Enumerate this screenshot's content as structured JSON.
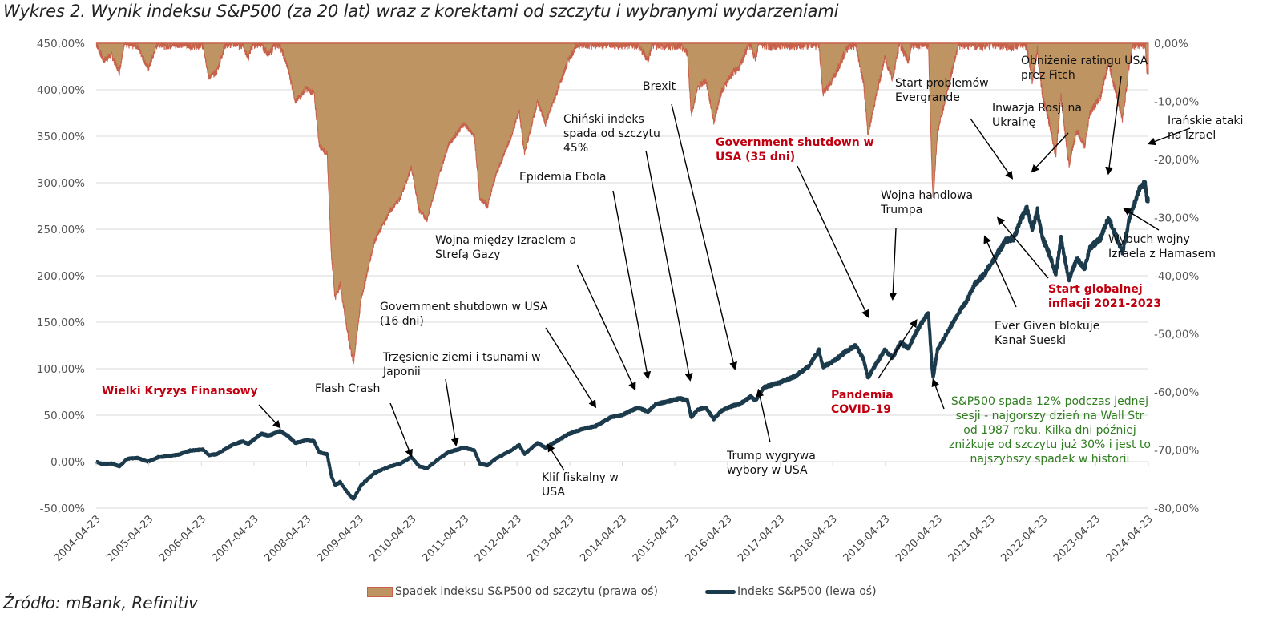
{
  "chart_data": {
    "type": "area+line",
    "title": "Wykres 2. Wynik indeksu S&P500 (za 20 lat) wraz z korektami od szczytu i wybranymi wydarzeniami",
    "source": "Źródło: mBank, Refinitiv",
    "x_ticks": [
      "2004-04-23",
      "2005-04-23",
      "2006-04-23",
      "2007-04-23",
      "2008-04-23",
      "2009-04-23",
      "2010-04-23",
      "2011-04-23",
      "2012-04-23",
      "2013-04-23",
      "2014-04-23",
      "2015-04-23",
      "2016-04-23",
      "2017-04-23",
      "2018-04-23",
      "2019-04-23",
      "2020-04-23",
      "2021-04-23",
      "2022-04-23",
      "2023-04-23",
      "2024-04-23"
    ],
    "x_range": [
      2004.31,
      2024.31
    ],
    "left_axis": {
      "label": "Indeks S&P500 (lewa oś)",
      "ylim": [
        -0.5,
        4.5
      ],
      "ticks": [
        "-50,00%",
        "0,00%",
        "50,00%",
        "100,00%",
        "150,00%",
        "200,00%",
        "250,00%",
        "300,00%",
        "350,00%",
        "400,00%",
        "450,00%"
      ]
    },
    "right_axis": {
      "label": "Spadek indeksu S&P500 od szczytu (prawa oś)",
      "ylim": [
        -0.8,
        0.0
      ],
      "ticks": [
        "0,00%",
        "-10,00%",
        "-20,00%",
        "-30,00%",
        "-40,00%",
        "-50,00%",
        "-60,00%",
        "-70,00%",
        "-80,00%"
      ]
    },
    "grid": true,
    "legend_position": "bottom",
    "series": [
      {
        "name": "Spadek indeksu S&P500 od szczytu (prawa oś)",
        "type": "area",
        "axis": "right",
        "color": "#bd9462",
        "edge_color": "#c8604a",
        "derived_from": "Indeks S&P500 (lewa oś)"
      },
      {
        "name": "Indeks S&P500 (lewa oś)",
        "type": "line",
        "axis": "left",
        "color": "#1b3a4b",
        "points": [
          [
            2004.31,
            0.0
          ],
          [
            2004.45,
            -0.03
          ],
          [
            2004.6,
            -0.02
          ],
          [
            2004.75,
            -0.05
          ],
          [
            2004.9,
            0.03
          ],
          [
            2005.1,
            0.04
          ],
          [
            2005.3,
            0.0
          ],
          [
            2005.5,
            0.05
          ],
          [
            2005.7,
            0.06
          ],
          [
            2005.9,
            0.08
          ],
          [
            2006.1,
            0.12
          ],
          [
            2006.35,
            0.13
          ],
          [
            2006.45,
            0.07
          ],
          [
            2006.6,
            0.08
          ],
          [
            2006.9,
            0.18
          ],
          [
            2007.1,
            0.22
          ],
          [
            2007.2,
            0.19
          ],
          [
            2007.45,
            0.3
          ],
          [
            2007.6,
            0.28
          ],
          [
            2007.8,
            0.33
          ],
          [
            2007.95,
            0.28
          ],
          [
            2008.1,
            0.2
          ],
          [
            2008.3,
            0.23
          ],
          [
            2008.45,
            0.22
          ],
          [
            2008.55,
            0.1
          ],
          [
            2008.7,
            0.08
          ],
          [
            2008.78,
            -0.15
          ],
          [
            2008.85,
            -0.25
          ],
          [
            2008.95,
            -0.22
          ],
          [
            2009.1,
            -0.34
          ],
          [
            2009.2,
            -0.4
          ],
          [
            2009.35,
            -0.25
          ],
          [
            2009.6,
            -0.12
          ],
          [
            2009.9,
            -0.05
          ],
          [
            2010.1,
            -0.02
          ],
          [
            2010.3,
            0.05
          ],
          [
            2010.45,
            -0.05
          ],
          [
            2010.6,
            -0.07
          ],
          [
            2010.8,
            0.02
          ],
          [
            2011.0,
            0.1
          ],
          [
            2011.3,
            0.15
          ],
          [
            2011.5,
            0.12
          ],
          [
            2011.6,
            -0.02
          ],
          [
            2011.75,
            -0.04
          ],
          [
            2011.9,
            0.03
          ],
          [
            2012.2,
            0.12
          ],
          [
            2012.35,
            0.18
          ],
          [
            2012.45,
            0.08
          ],
          [
            2012.7,
            0.2
          ],
          [
            2012.85,
            0.15
          ],
          [
            2013.0,
            0.2
          ],
          [
            2013.3,
            0.3
          ],
          [
            2013.6,
            0.36
          ],
          [
            2013.8,
            0.38
          ],
          [
            2014.1,
            0.48
          ],
          [
            2014.3,
            0.5
          ],
          [
            2014.6,
            0.58
          ],
          [
            2014.8,
            0.54
          ],
          [
            2014.95,
            0.62
          ],
          [
            2015.2,
            0.65
          ],
          [
            2015.4,
            0.68
          ],
          [
            2015.55,
            0.66
          ],
          [
            2015.62,
            0.48
          ],
          [
            2015.75,
            0.56
          ],
          [
            2015.9,
            0.58
          ],
          [
            2016.05,
            0.46
          ],
          [
            2016.2,
            0.55
          ],
          [
            2016.4,
            0.6
          ],
          [
            2016.55,
            0.62
          ],
          [
            2016.75,
            0.7
          ],
          [
            2016.85,
            0.66
          ],
          [
            2017.0,
            0.8
          ],
          [
            2017.3,
            0.85
          ],
          [
            2017.6,
            0.92
          ],
          [
            2017.85,
            1.02
          ],
          [
            2018.05,
            1.2
          ],
          [
            2018.12,
            1.02
          ],
          [
            2018.3,
            1.07
          ],
          [
            2018.55,
            1.18
          ],
          [
            2018.75,
            1.25
          ],
          [
            2018.9,
            1.1
          ],
          [
            2018.98,
            0.9
          ],
          [
            2019.1,
            1.02
          ],
          [
            2019.3,
            1.2
          ],
          [
            2019.45,
            1.12
          ],
          [
            2019.6,
            1.28
          ],
          [
            2019.75,
            1.22
          ],
          [
            2019.9,
            1.4
          ],
          [
            2020.1,
            1.58
          ],
          [
            2020.13,
            1.6
          ],
          [
            2020.2,
            1.0
          ],
          [
            2020.22,
            0.9
          ],
          [
            2020.3,
            1.2
          ],
          [
            2020.5,
            1.4
          ],
          [
            2020.7,
            1.6
          ],
          [
            2020.85,
            1.72
          ],
          [
            2021.0,
            1.9
          ],
          [
            2021.2,
            2.02
          ],
          [
            2021.4,
            2.2
          ],
          [
            2021.6,
            2.38
          ],
          [
            2021.75,
            2.4
          ],
          [
            2021.9,
            2.62
          ],
          [
            2022.0,
            2.73
          ],
          [
            2022.1,
            2.5
          ],
          [
            2022.2,
            2.7
          ],
          [
            2022.3,
            2.4
          ],
          [
            2022.45,
            2.2
          ],
          [
            2022.55,
            2.02
          ],
          [
            2022.65,
            2.4
          ],
          [
            2022.75,
            2.1
          ],
          [
            2022.8,
            1.96
          ],
          [
            2022.95,
            2.18
          ],
          [
            2023.1,
            2.08
          ],
          [
            2023.2,
            2.3
          ],
          [
            2023.4,
            2.4
          ],
          [
            2023.55,
            2.62
          ],
          [
            2023.7,
            2.42
          ],
          [
            2023.82,
            2.25
          ],
          [
            2023.95,
            2.62
          ],
          [
            2024.05,
            2.78
          ],
          [
            2024.15,
            2.95
          ],
          [
            2024.25,
            3.0
          ],
          [
            2024.28,
            2.83
          ],
          [
            2024.31,
            2.8
          ]
        ]
      }
    ],
    "annotations": [
      {
        "text": [
          "Wielki Kryzys Finansowy"
        ],
        "style": "red",
        "arrow_to": [
          2007.8,
          0.37
        ]
      },
      {
        "text": [
          "Flash Crash"
        ],
        "style": "normal",
        "arrow_to": [
          2010.3,
          0.06
        ]
      },
      {
        "text": [
          "Trzęsienie ziemi i tsunami w",
          "Japonii"
        ],
        "style": "normal",
        "arrow_to": [
          2011.15,
          0.18
        ]
      },
      {
        "text": [
          "Government shutdown w USA",
          "(16 dni)"
        ],
        "style": "normal",
        "arrow_to": [
          2013.8,
          0.59
        ]
      },
      {
        "text": [
          "Wojna między Izraelem a",
          "Strefą Gazy"
        ],
        "style": "normal",
        "arrow_to": [
          2014.55,
          0.78
        ]
      },
      {
        "text": [
          "Epidemia Ebola"
        ],
        "style": "normal",
        "arrow_to": [
          2014.8,
          0.9
        ]
      },
      {
        "text": [
          "Chiński indeks",
          "spada od szczytu",
          "45%"
        ],
        "style": "normal",
        "arrow_to": [
          2015.6,
          0.88
        ]
      },
      {
        "text": [
          "Brexit"
        ],
        "style": "normal",
        "arrow_to": [
          2016.45,
          1.0
        ]
      },
      {
        "text": [
          "Klif fiskalny w",
          "USA"
        ],
        "style": "normal",
        "arrow_to": [
          2012.9,
          0.18
        ]
      },
      {
        "text": [
          "Trump wygrywa",
          "wybory w USA"
        ],
        "style": "normal",
        "arrow_to": [
          2016.9,
          0.77
        ]
      },
      {
        "text": [
          "Government shutdown w",
          "USA (35 dni)"
        ],
        "style": "red",
        "arrow_to": [
          2018.98,
          1.56
        ]
      },
      {
        "text": [
          "Wojna handlowa",
          "Trumpa"
        ],
        "style": "normal",
        "arrow_to": [
          2019.45,
          1.75
        ]
      },
      {
        "text": [
          "Pandemia",
          "COVID-19"
        ],
        "style": "red",
        "arrow_to": [
          2019.9,
          1.52
        ]
      },
      {
        "text": [
          "S&P500 spada 12% podczas jednej",
          "sesji - najgorszy dzień na Wall Str",
          "od 1987 roku. Kilka dni później",
          "zniżkuje od szczytu już 30% i jest to",
          "najszybszy spadek w historii"
        ],
        "style": "green",
        "arrow_to": [
          2020.22,
          0.88
        ]
      },
      {
        "text": [
          "Start problemów",
          "Evergrande"
        ],
        "style": "normal",
        "arrow_to": [
          2021.72,
          3.05
        ]
      },
      {
        "text": [
          "Inwazja Rosji na",
          "Ukrainę"
        ],
        "style": "normal",
        "arrow_to": [
          2022.1,
          3.12
        ]
      },
      {
        "text": [
          "Ever Given blokuje",
          "Kanał Sueski"
        ],
        "style": "normal",
        "arrow_to": [
          2021.2,
          2.42
        ]
      },
      {
        "text": [
          "Start globalnej",
          "inflacji 2021-2023"
        ],
        "style": "red",
        "arrow_to": [
          2021.45,
          2.62
        ]
      },
      {
        "text": [
          "Obniżenie ratingu USA",
          "prez Fitch"
        ],
        "style": "normal",
        "arrow_to": [
          2023.55,
          3.1
        ]
      },
      {
        "text": [
          "Wybuch wojny",
          "Izraela z Hamasem"
        ],
        "style": "normal",
        "arrow_to": [
          2023.85,
          2.72
        ]
      },
      {
        "text": [
          "Irańskie ataki",
          "na Izrael"
        ],
        "style": "normal",
        "arrow_to": [
          2024.32,
          3.42
        ]
      }
    ],
    "legend": [
      {
        "label": "Spadek indeksu S&P500 od szczytu (prawa oś)",
        "kind": "area"
      },
      {
        "label": "Indeks S&P500 (lewa oś)",
        "kind": "line"
      }
    ]
  }
}
